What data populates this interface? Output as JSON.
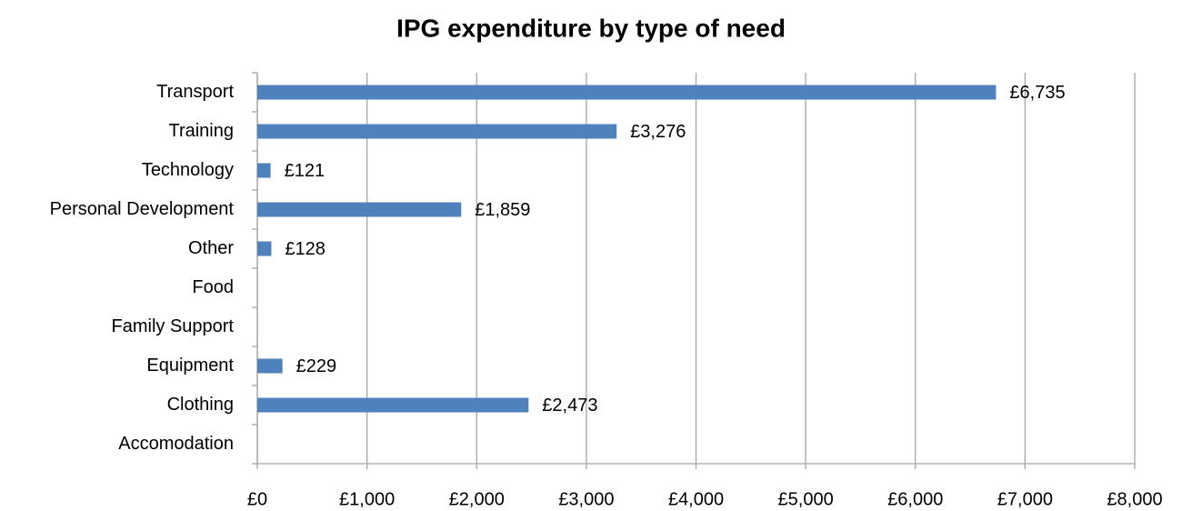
{
  "chart_data": {
    "type": "barh",
    "title": "IPG expenditure by type of need",
    "categories": [
      "Transport",
      "Training",
      "Technology",
      "Personal Development",
      "Other",
      "Food",
      "Family Support",
      "Equipment",
      "Clothing",
      "Accomodation"
    ],
    "values": [
      6735,
      3276,
      121,
      1859,
      128,
      null,
      null,
      229,
      2473,
      null
    ],
    "value_labels": [
      "£6,735",
      "£3,276",
      "£121",
      "£1,859",
      "£128",
      null,
      null,
      "£229",
      "£2,473",
      null
    ],
    "color": "#4f81bd",
    "xlim": [
      0,
      8000
    ],
    "xticks": [
      {
        "value": 0,
        "label": "£0"
      },
      {
        "value": 1000,
        "label": "£1,000"
      },
      {
        "value": 2000,
        "label": "£2,000"
      },
      {
        "value": 3000,
        "label": "£3,000"
      },
      {
        "value": 4000,
        "label": "£4,000"
      },
      {
        "value": 5000,
        "label": "£5,000"
      },
      {
        "value": 6000,
        "label": "£6,000"
      },
      {
        "value": 7000,
        "label": "£7,000"
      },
      {
        "value": 8000,
        "label": "£8,000"
      }
    ],
    "grid": true
  }
}
